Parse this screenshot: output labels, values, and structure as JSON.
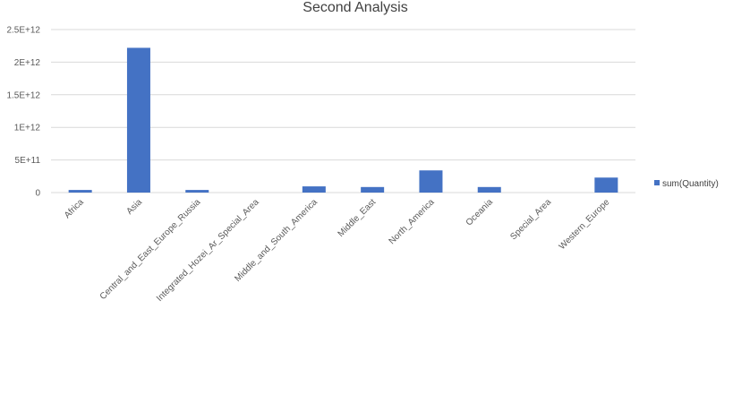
{
  "chart_data": {
    "type": "bar",
    "title": "Second Analysis",
    "xlabel": "",
    "ylabel": "",
    "categories": [
      "Africa",
      "Asia",
      "Central_and_East_Europe_Russia",
      "Integrated_Hozei_Ar_Special_Area",
      "Middle_and_South_America",
      "Middle_East",
      "North_America",
      "Oceania",
      "Special_Area",
      "Western_Europe"
    ],
    "series": [
      {
        "name": "sum(Quantity)",
        "color": "#4472c4",
        "values": [
          40000000000,
          2220000000000,
          40000000000,
          0,
          95000000000,
          85000000000,
          340000000000,
          85000000000,
          0,
          230000000000
        ]
      }
    ],
    "ylim": [
      0,
      2500000000000
    ],
    "yticks": [
      {
        "value": 0,
        "label": "0"
      },
      {
        "value": 500000000000,
        "label": "5E+11"
      },
      {
        "value": 1000000000000,
        "label": "1E+12"
      },
      {
        "value": 1500000000000,
        "label": "1.5E+12"
      },
      {
        "value": 2000000000000,
        "label": "2E+12"
      },
      {
        "value": 2500000000000,
        "label": "2.5E+12"
      }
    ],
    "grid": true,
    "legend_position": "right"
  }
}
